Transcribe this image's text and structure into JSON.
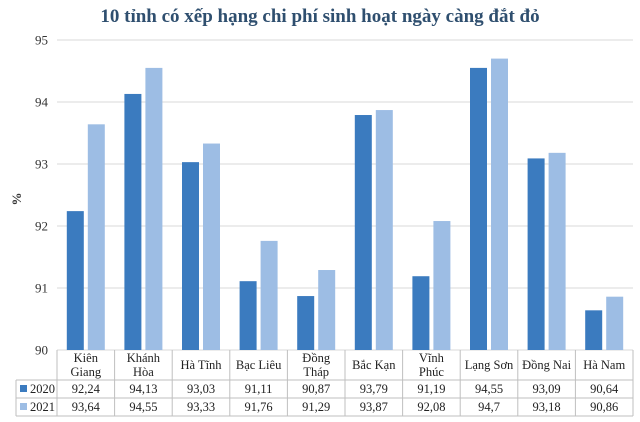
{
  "chart_data": {
    "type": "bar",
    "title": "10 tỉnh có xếp hạng chi phí sinh hoạt ngày càng đắt đỏ",
    "ylabel": "%",
    "ylim": [
      90,
      95
    ],
    "yticks": [
      90,
      91,
      92,
      93,
      94,
      95
    ],
    "categories": [
      [
        "Kiên",
        "Giang"
      ],
      [
        "Khánh",
        "Hòa"
      ],
      [
        "Hà Tĩnh"
      ],
      [
        "Bạc Liêu"
      ],
      [
        "Đồng",
        "Tháp"
      ],
      [
        "Bắc Kạn"
      ],
      [
        "Vĩnh",
        "Phúc"
      ],
      [
        "Lạng Sơn"
      ],
      [
        "Đồng Nai"
      ],
      [
        "Hà Nam"
      ]
    ],
    "series": [
      {
        "name": "2020",
        "color": "#3b7bbf",
        "values": [
          92.24,
          94.13,
          93.03,
          91.11,
          90.87,
          93.79,
          91.19,
          94.55,
          93.09,
          90.64
        ],
        "labels": [
          "92,24",
          "94,13",
          "93,03",
          "91,11",
          "90,87",
          "93,79",
          "91,19",
          "94,55",
          "93,09",
          "90,64"
        ]
      },
      {
        "name": "2021",
        "color": "#9dbde4",
        "values": [
          93.64,
          94.55,
          93.33,
          91.76,
          91.29,
          93.87,
          92.08,
          94.7,
          93.18,
          90.86
        ],
        "labels": [
          "93,64",
          "94,55",
          "93,33",
          "91,76",
          "91,29",
          "93,87",
          "92,08",
          "94,7",
          "93,18",
          "90,86"
        ]
      }
    ],
    "grid": true,
    "legend": "table-left"
  }
}
